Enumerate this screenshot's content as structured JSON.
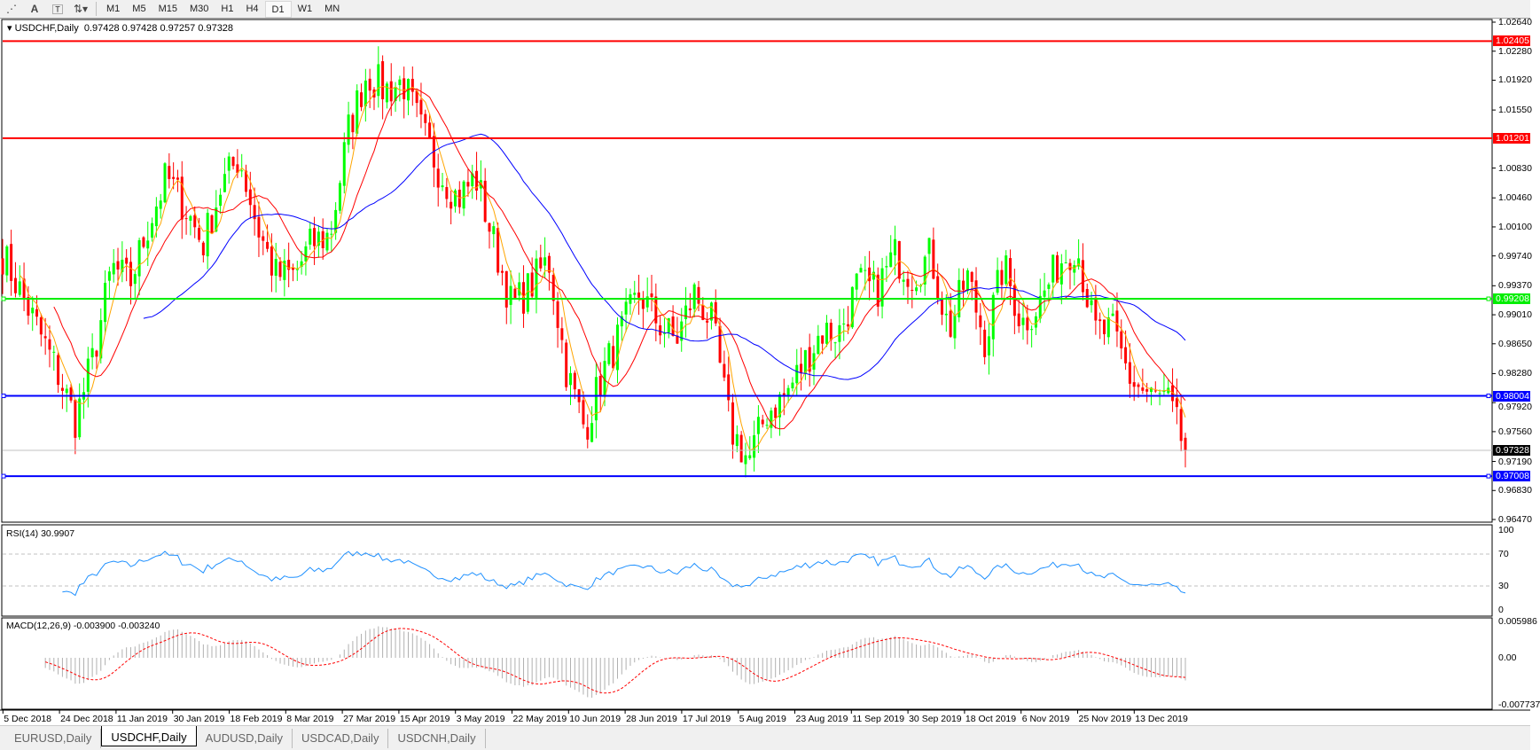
{
  "toolbar": {
    "icons": [
      "period-separator-icon",
      "text-icon",
      "text-label-icon",
      "arrows-icon"
    ],
    "timeframes": [
      "M1",
      "M5",
      "M15",
      "M30",
      "H1",
      "H4",
      "D1",
      "W1",
      "MN"
    ],
    "active": "D1"
  },
  "chart": {
    "symbol": "USDCHF,Daily",
    "ohlc": "0.97428 0.97428 0.97257 0.97328"
  },
  "price_axis": [
    "1.02640",
    "1.02280",
    "1.01920",
    "1.01550",
    "1.00830",
    "1.00460",
    "1.00100",
    "0.99740",
    "0.99370",
    "0.99010",
    "0.98650",
    "0.98280",
    "0.97920",
    "0.97560",
    "0.97190",
    "0.96830",
    "0.96470"
  ],
  "levels": [
    {
      "price": "1.02405",
      "color": "#ff0000"
    },
    {
      "price": "1.01201",
      "color": "#ff0000"
    },
    {
      "price": "0.99208",
      "color": "#00ee00"
    },
    {
      "price": "0.98004",
      "color": "#0000ff"
    },
    {
      "price": "0.97008",
      "color": "#0000ff"
    },
    {
      "price": "0.97328",
      "color": "#000000"
    }
  ],
  "rsi": {
    "label": "RSI(14) 30.9907",
    "axis": [
      "100",
      "70",
      "30",
      "0"
    ]
  },
  "macd": {
    "label": "MACD(12,26,9) -0.003900 -0.003240",
    "axis": [
      "0.005986",
      "0.00",
      "-0.007737"
    ]
  },
  "dates": [
    "5 Dec 2018",
    "24 Dec 2018",
    "11 Jan 2019",
    "30 Jan 2019",
    "18 Feb 2019",
    "8 Mar 2019",
    "27 Mar 2019",
    "15 Apr 2019",
    "3 May 2019",
    "22 May 2019",
    "10 Jun 2019",
    "28 Jun 2019",
    "17 Jul 2019",
    "5 Aug 2019",
    "23 Aug 2019",
    "11 Sep 2019",
    "30 Sep 2019",
    "18 Oct 2019",
    "6 Nov 2019",
    "25 Nov 2019",
    "13 Dec 2019"
  ],
  "tabs": [
    "EURUSD,Daily",
    "USDCHF,Daily",
    "AUDUSD,Daily",
    "USDCAD,Daily",
    "USDCNH,Daily"
  ],
  "active_tab": "USDCHF,Daily",
  "chart_data": {
    "type": "candlestick",
    "colors": {
      "bull": "#00ff00",
      "bear": "#ff0000",
      "ma_fast": "#ffa500",
      "ma_mid": "#ff0000",
      "ma_slow": "#0000ff",
      "rsi": "#1e90ff",
      "macd_signal": "#ff0000"
    },
    "ylim": [
      0.9647,
      1.0264
    ],
    "approx_closes": [
      0.9976,
      0.9928,
      0.988,
      0.983,
      0.977,
      0.985,
      0.996,
      0.994,
      1.0012,
      1.0072,
      1.0036,
      0.9988,
      1.006,
      1.0097,
      1.001,
      0.995,
      0.995,
      0.999,
      1.0,
      1.013,
      1.02,
      1.018,
      1.019,
      1.013,
      1.008,
      1.0045,
      1.0072,
      0.999,
      0.991,
      0.9936,
      0.997,
      0.983,
      0.9759,
      0.983,
      0.988,
      0.9928,
      0.9892,
      0.9868,
      0.9928,
      0.989,
      0.976,
      0.972,
      0.978,
      0.98,
      0.984,
      0.988,
      0.988,
      0.994,
      0.993,
      0.9976,
      0.995,
      0.9976,
      0.988,
      0.995,
      0.9868,
      0.9964,
      0.989,
      0.9916,
      0.9964,
      0.999,
      0.988,
      0.988,
      0.982,
      0.98,
      0.9795,
      0.9733
    ]
  }
}
